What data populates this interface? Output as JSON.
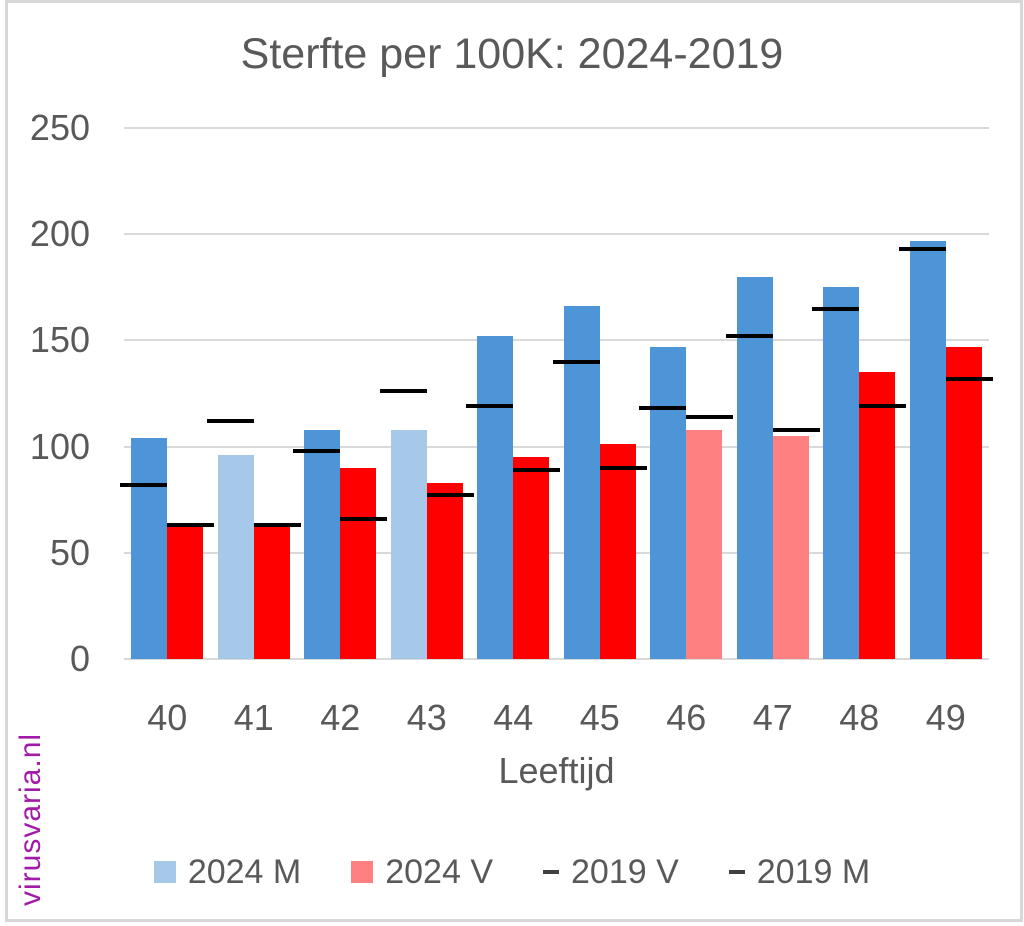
{
  "title": "Sterfte per 100K: 2024-2019",
  "watermark": "virusvaria.nl",
  "colors": {
    "male_2024": "#4E95D8",
    "male_2024_highlight": "#A6C9EA",
    "female_2024": "#FF0000",
    "female_2024_highlight": "#FF8080",
    "marker_2019": "#000000",
    "gridline": "#D9D9D9",
    "axis_text": "#595959",
    "frame_border": "#D7D7D7",
    "watermark_purple": "#A21BA8"
  },
  "chart_data": {
    "type": "bar",
    "title": "Sterfte per 100K: 2024-2019",
    "xlabel": "Leeftijd",
    "ylabel": "",
    "ylim": [
      0,
      250
    ],
    "yticks": [
      0,
      50,
      100,
      150,
      200,
      250
    ],
    "grid": "horizontal-only",
    "legend_position": "bottom",
    "categories": [
      "40",
      "41",
      "42",
      "43",
      "44",
      "45",
      "46",
      "47",
      "48",
      "49"
    ],
    "series": [
      {
        "name": "2024 M",
        "type": "bar",
        "color": "#4E95D8",
        "highlight_color": "#A6C9EA",
        "highlighted_categories": [
          "41",
          "43"
        ],
        "values": [
          104,
          96,
          108,
          108,
          152,
          166,
          147,
          180,
          175,
          197
        ]
      },
      {
        "name": "2024 V",
        "type": "bar",
        "color": "#FF0000",
        "highlight_color": "#FF8080",
        "highlighted_categories": [
          "46",
          "47"
        ],
        "values": [
          64,
          64,
          90,
          83,
          95,
          101,
          108,
          105,
          135,
          147
        ]
      },
      {
        "name": "2019 V",
        "type": "dash-marker",
        "color": "#000000",
        "over": "female",
        "values": [
          63,
          63,
          66,
          77,
          89,
          90,
          114,
          108,
          119,
          132
        ]
      },
      {
        "name": "2019 M",
        "type": "dash-marker",
        "color": "#000000",
        "over": "male",
        "values": [
          82,
          112,
          98,
          126,
          119,
          140,
          118,
          152,
          165,
          193
        ]
      }
    ],
    "legend": [
      {
        "label": "2024 M",
        "kind": "square",
        "swatch": "#A6C9EA"
      },
      {
        "label": "2024 V",
        "kind": "square",
        "swatch": "#FF8080"
      },
      {
        "label": "2019 V",
        "kind": "dash",
        "swatch": "#404040"
      },
      {
        "label": "2019 M",
        "kind": "dash",
        "swatch": "#404040"
      }
    ]
  }
}
